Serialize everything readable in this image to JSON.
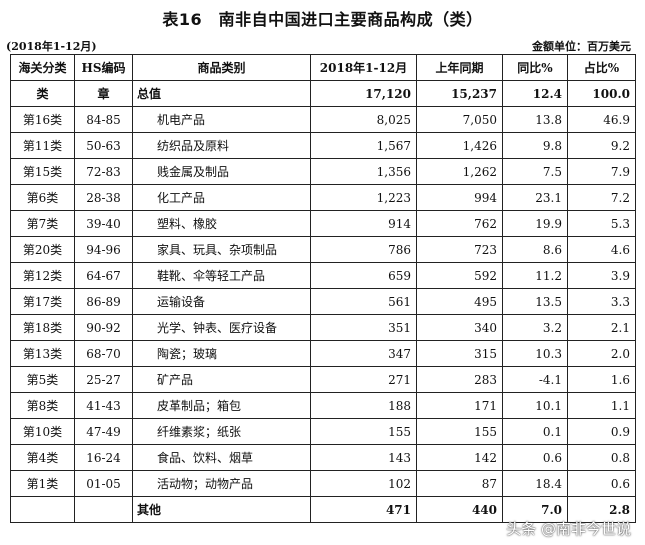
{
  "title": "表16　南非自中国进口主要商品构成（类）",
  "period_note": "(2018年1-12月)",
  "unit_note": "金额单位：百万美元",
  "headers": [
    "海关分类",
    "HS编码",
    "商品类别",
    "2018年1-12月",
    "上年同期",
    "同比%",
    "占比%"
  ],
  "rows": [
    [
      "类",
      "章",
      "总值",
      "17,120",
      "15,237",
      "12.4",
      "100.0"
    ],
    [
      "第16类",
      "84-85",
      "机电产品",
      "8,025",
      "7,050",
      "13.8",
      "46.9"
    ],
    [
      "第11类",
      "50-63",
      "纺织品及原料",
      "1,567",
      "1,426",
      "9.8",
      "9.2"
    ],
    [
      "第15类",
      "72-83",
      "贱金属及制品",
      "1,356",
      "1,262",
      "7.5",
      "7.9"
    ],
    [
      "第6类",
      "28-38",
      "化工产品",
      "1,223",
      "994",
      "23.1",
      "7.2"
    ],
    [
      "第7类",
      "39-40",
      "塑料、橡胶",
      "914",
      "762",
      "19.9",
      "5.3"
    ],
    [
      "第20类",
      "94-96",
      "家具、玩具、杂项制品",
      "786",
      "723",
      "8.6",
      "4.6"
    ],
    [
      "第12类",
      "64-67",
      "鞋靴、伞等轻工产品",
      "659",
      "592",
      "11.2",
      "3.9"
    ],
    [
      "第17类",
      "86-89",
      "运输设备",
      "561",
      "495",
      "13.5",
      "3.3"
    ],
    [
      "第18类",
      "90-92",
      "光学、钟表、医疗设备",
      "351",
      "340",
      "3.2",
      "2.1"
    ],
    [
      "第13类",
      "68-70",
      "陶瓷；玻璃",
      "347",
      "315",
      "10.3",
      "2.0"
    ],
    [
      "第5类",
      "25-27",
      "矿产品",
      "271",
      "283",
      "-4.1",
      "1.6"
    ],
    [
      "第8类",
      "41-43",
      "皮革制品；箱包",
      "188",
      "171",
      "10.1",
      "1.1"
    ],
    [
      "第10类",
      "47-49",
      "纤维素浆；纸张",
      "155",
      "155",
      "0.1",
      "0.9"
    ],
    [
      "第4类",
      "16-24",
      "食品、饮料、烟草",
      "143",
      "142",
      "0.6",
      "0.8"
    ],
    [
      "第1类",
      "01-05",
      "活动物；动物产品",
      "102",
      "87",
      "18.4",
      "0.6"
    ],
    [
      "",
      "",
      "其他",
      "471",
      "440",
      "7.0",
      "2.8"
    ]
  ],
  "watermark": "头条 @南非今世说"
}
